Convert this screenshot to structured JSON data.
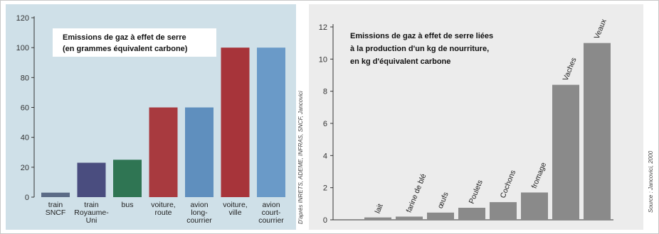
{
  "chart_data": [
    {
      "type": "bar",
      "title_lines": [
        "Emissions de gaz à effet de serre",
        "(en grammes équivalent carbone)"
      ],
      "categories": [
        [
          "train",
          "SNCF"
        ],
        [
          "train",
          "Royaume-",
          "Uni"
        ],
        [
          "bus"
        ],
        [
          "voiture,",
          "route"
        ],
        [
          "avion",
          "long-",
          "courrier"
        ],
        [
          "voiture,",
          "ville"
        ],
        [
          "avion",
          "court-",
          "courrier"
        ]
      ],
      "values": [
        3,
        23,
        25,
        60,
        60,
        100,
        100
      ],
      "bar_colors": [
        "#5b6b86",
        "#4a4d7f",
        "#2f7553",
        "#a83a3f",
        "#5f8fbe",
        "#a7343a",
        "#6a9ac8"
      ],
      "ylim": [
        0,
        120
      ],
      "yticks": [
        0,
        20,
        40,
        60,
        80,
        100,
        120
      ],
      "background": "#cfe0e8",
      "grid": false,
      "source": "D'après INRETS, ADEME, INFRAS, SNCF, Jancovici"
    },
    {
      "type": "bar",
      "title_lines": [
        "Emissions de gaz à effet de serre liées",
        "à la production d'un kg de nourriture,",
        "en kg d'équivalent carbone"
      ],
      "categories": [
        "lait",
        "farine de blé",
        "œufs",
        "Poulets",
        "Cochons",
        "fromage",
        "Vaches",
        "Veaux"
      ],
      "values": [
        0.15,
        0.2,
        0.45,
        0.75,
        1.1,
        1.7,
        8.4,
        11
      ],
      "bar_color": "#8a8a8a",
      "ylim": [
        0,
        12
      ],
      "yticks": [
        0,
        2,
        4,
        6,
        8,
        10,
        12
      ],
      "background": "#ececec",
      "grid": false,
      "source": "Source : Jancovici, 2000"
    }
  ]
}
